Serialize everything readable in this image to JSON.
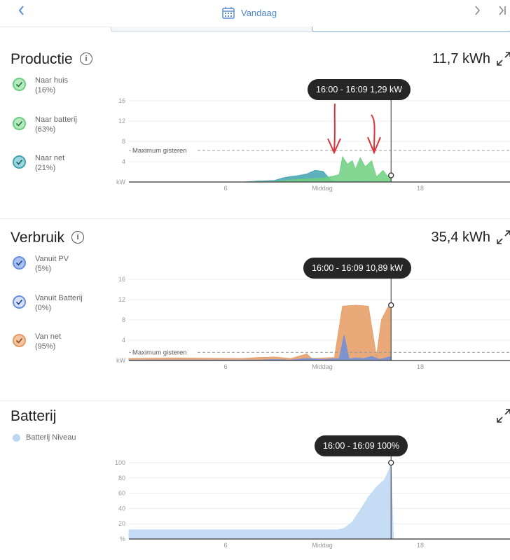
{
  "header": {
    "date_label": "Vandaag"
  },
  "productie": {
    "title": "Productie",
    "total": "11,7 kWh",
    "legend": [
      {
        "label": "Naar huis",
        "pct": "(16%)",
        "color": "#6ccf7f"
      },
      {
        "label": "Naar batterij",
        "pct": "(63%)",
        "color": "#6ccf7f"
      },
      {
        "label": "Naar net",
        "pct": "(21%)",
        "color": "#3fa3b0"
      }
    ],
    "tooltip": "16:00 - 16:09 1,29 kW",
    "max_label": "Maximum gisteren"
  },
  "verbruik": {
    "title": "Verbruik",
    "total": "35,4 kWh",
    "legend": [
      {
        "label": "Vanuit PV",
        "pct": "(5%)",
        "color": "#6a8fe0"
      },
      {
        "label": "Vanuit Batterij",
        "pct": "(0%)",
        "color": "#6a8fe0"
      },
      {
        "label": "Van net",
        "pct": "(95%)",
        "color": "#e59a60"
      }
    ],
    "tooltip": "16:00 - 16:09 10,89 kW",
    "max_label": "Maximum gisteren"
  },
  "batterij": {
    "title": "Batterij",
    "legend_label": "Batterij Niveau",
    "tooltip": "16:00 - 16:09 100%"
  },
  "chart_data": [
    {
      "type": "area",
      "x_tick_labels": [
        "6",
        "Middag",
        "18"
      ],
      "y_ticks": [
        0,
        4,
        8,
        12,
        16
      ],
      "y_unit_label": "kW",
      "ylim": [
        0,
        16
      ],
      "reference_line": {
        "label": "Maximum gisteren",
        "value": 6.2
      },
      "series": [
        {
          "color": "#3fa3b0",
          "points": [
            [
              7,
              0
            ],
            [
              8,
              0.2
            ],
            [
              9,
              0.3
            ],
            [
              9.5,
              0.8
            ],
            [
              10,
              1.1
            ],
            [
              10.5,
              1.3
            ],
            [
              11,
              1.6
            ],
            [
              11.5,
              2.3
            ],
            [
              12,
              2.1
            ],
            [
              12.5,
              0.3
            ],
            [
              13,
              0
            ],
            [
              14,
              0.1
            ],
            [
              15,
              0
            ],
            [
              16.2,
              0
            ]
          ]
        },
        {
          "color": "#6ccf7f",
          "points": [
            [
              7,
              0
            ],
            [
              9,
              0.1
            ],
            [
              10,
              0.4
            ],
            [
              11,
              0.6
            ],
            [
              12,
              0.8
            ],
            [
              12.7,
              1.2
            ],
            [
              13,
              1.5
            ],
            [
              13.2,
              5.0
            ],
            [
              13.5,
              3.5
            ],
            [
              13.8,
              4.2
            ],
            [
              14,
              2.6
            ],
            [
              14.3,
              4.8
            ],
            [
              14.6,
              3.0
            ],
            [
              15,
              4.2
            ],
            [
              15.3,
              1.0
            ],
            [
              15.7,
              2.3
            ],
            [
              16,
              1.1
            ],
            [
              16.2,
              1.3
            ]
          ]
        }
      ]
    },
    {
      "type": "area",
      "x_tick_labels": [
        "6",
        "Middag",
        "18"
      ],
      "y_ticks": [
        0,
        4,
        8,
        12,
        16
      ],
      "y_unit_label": "kW",
      "ylim": [
        0,
        16
      ],
      "reference_line": {
        "label": "Maximum gisteren",
        "value": 1.6
      },
      "series": [
        {
          "color": "#e59a60",
          "points": [
            [
              0,
              0.4
            ],
            [
              3,
              0.5
            ],
            [
              7,
              0.4
            ],
            [
              8,
              0.6
            ],
            [
              9,
              0.7
            ],
            [
              10,
              0.4
            ],
            [
              11,
              1.3
            ],
            [
              11.3,
              0.4
            ],
            [
              12,
              0.5
            ],
            [
              12.7,
              0.6
            ],
            [
              13.2,
              10.7
            ],
            [
              14,
              10.9
            ],
            [
              14.8,
              10.7
            ],
            [
              15.3,
              0.8
            ],
            [
              15.6,
              8.0
            ],
            [
              16,
              10.5
            ],
            [
              16.2,
              10.9
            ]
          ]
        },
        {
          "color": "#6a8fe0",
          "points": [
            [
              0,
              0.1
            ],
            [
              8,
              0.1
            ],
            [
              9,
              0.2
            ],
            [
              10,
              0.1
            ],
            [
              11,
              0.4
            ],
            [
              12,
              0.2
            ],
            [
              13,
              0.4
            ],
            [
              13.3,
              5.0
            ],
            [
              13.6,
              0.3
            ],
            [
              14,
              0.5
            ],
            [
              14.5,
              0.4
            ],
            [
              15,
              0.8
            ],
            [
              15.5,
              0.2
            ],
            [
              16.2,
              0.8
            ]
          ]
        }
      ]
    },
    {
      "type": "area",
      "x_tick_labels": [
        "6",
        "Middag",
        "18"
      ],
      "y_ticks": [
        0,
        20,
        40,
        60,
        80,
        100
      ],
      "y_unit_label": "%",
      "ylim": [
        0,
        100
      ],
      "series": [
        {
          "name": "Batterij Niveau",
          "color": "#bcd6f2",
          "points": [
            [
              0,
              12
            ],
            [
              12.9,
              12
            ],
            [
              13.3,
              14
            ],
            [
              13.8,
              22
            ],
            [
              14.3,
              38
            ],
            [
              14.8,
              55
            ],
            [
              15.3,
              68
            ],
            [
              15.8,
              78
            ],
            [
              16.1,
              92
            ],
            [
              16.2,
              100
            ],
            [
              16.35,
              0
            ]
          ]
        }
      ]
    }
  ]
}
